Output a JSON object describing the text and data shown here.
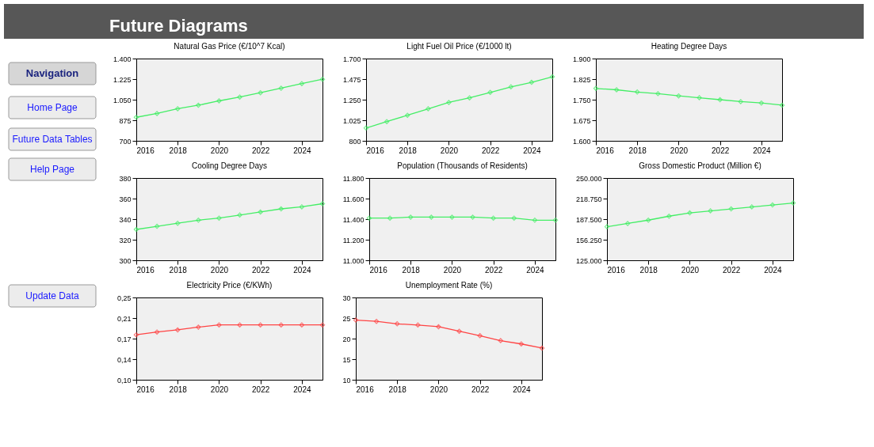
{
  "chart_data": [
    {
      "type": "other",
      "title": "Future Diagrams",
      "annotations": [
        "Navigation",
        "Home Page",
        "Future Data Tables",
        "Help Page",
        "Update Data"
      ]
    },
    {
      "type": "line",
      "title": "Natural Gas Price (€/10^7 Kcal)",
      "x": [
        2016,
        2017,
        2018,
        2019,
        2020,
        2021,
        2022,
        2023,
        2024,
        2025
      ],
      "xlim": [
        2016,
        2025
      ],
      "xticks": [
        2016,
        2018,
        2020,
        2022,
        2024
      ],
      "ylim": [
        700,
        1400
      ],
      "yticks": [
        {
          "value": 700,
          "label": "700"
        },
        {
          "value": 875,
          "label": "875"
        },
        {
          "value": 1050,
          "label": "1.050"
        },
        {
          "value": 1225,
          "label": "1.225"
        },
        {
          "value": 1400,
          "label": "1.400"
        }
      ],
      "grid": false,
      "marker": "diamond",
      "line_style": "solid",
      "series": [
        {
          "color": "#44ee66",
          "values": [
            900,
            933,
            973,
            1003,
            1040,
            1072,
            1109,
            1148,
            1187,
            1224
          ]
        }
      ]
    },
    {
      "type": "line",
      "title": "Light Fuel Oil Price (€/1000 lt)",
      "x": [
        2016,
        2017,
        2018,
        2019,
        2020,
        2021,
        2022,
        2023,
        2024,
        2025
      ],
      "xlim": [
        2016,
        2025
      ],
      "xticks": [
        2016,
        2018,
        2020,
        2022,
        2024
      ],
      "ylim": [
        800,
        1700
      ],
      "yticks": [
        {
          "value": 800,
          "label": "800"
        },
        {
          "value": 1025,
          "label": "1.025"
        },
        {
          "value": 1250,
          "label": "1.250"
        },
        {
          "value": 1475,
          "label": "1.475"
        },
        {
          "value": 1700,
          "label": "1.700"
        }
      ],
      "grid": false,
      "marker": "diamond",
      "line_style": "solid",
      "series": [
        {
          "color": "#44ee66",
          "values": [
            940,
            1010,
            1080,
            1150,
            1220,
            1270,
            1330,
            1390,
            1440,
            1500
          ]
        }
      ]
    },
    {
      "type": "line",
      "title": "Heating Degree Days",
      "x": [
        2016,
        2017,
        2018,
        2019,
        2020,
        2021,
        2022,
        2023,
        2024,
        2025
      ],
      "xlim": [
        2016,
        2025
      ],
      "xticks": [
        2016,
        2018,
        2020,
        2022,
        2024
      ],
      "ylim": [
        1600,
        1900
      ],
      "yticks": [
        {
          "value": 1600,
          "label": "1.600"
        },
        {
          "value": 1675,
          "label": "1.675"
        },
        {
          "value": 1750,
          "label": "1.750"
        },
        {
          "value": 1825,
          "label": "1.825"
        },
        {
          "value": 1900,
          "label": "1.900"
        }
      ],
      "grid": false,
      "marker": "diamond",
      "line_style": "solid",
      "series": [
        {
          "color": "#44ee66",
          "values": [
            1791,
            1786,
            1778,
            1772,
            1764,
            1757,
            1750,
            1743,
            1738,
            1730
          ]
        }
      ]
    },
    {
      "type": "line",
      "title": "Cooling Degree Days",
      "x": [
        2016,
        2017,
        2018,
        2019,
        2020,
        2021,
        2022,
        2023,
        2024,
        2025
      ],
      "xlim": [
        2016,
        2025
      ],
      "xticks": [
        2016,
        2018,
        2020,
        2022,
        2024
      ],
      "ylim": [
        300,
        380
      ],
      "yticks": [
        300,
        320,
        340,
        360,
        380
      ],
      "grid": false,
      "marker": "diamond",
      "line_style": "solid",
      "series": [
        {
          "color": "#44ee66",
          "values": [
            330,
            333,
            336,
            339,
            341,
            344,
            347,
            350,
            352,
            355
          ]
        }
      ]
    },
    {
      "type": "line",
      "title": "Population (Thousands of Residents)",
      "x": [
        2016,
        2017,
        2018,
        2019,
        2020,
        2021,
        2022,
        2023,
        2024,
        2025
      ],
      "xlim": [
        2016,
        2025
      ],
      "xticks": [
        2016,
        2018,
        2020,
        2022,
        2024
      ],
      "ylim": [
        11000,
        11800
      ],
      "yticks": [
        {
          "value": 11000,
          "label": "11.000"
        },
        {
          "value": 11200,
          "label": "11.200"
        },
        {
          "value": 11400,
          "label": "11.400"
        },
        {
          "value": 11600,
          "label": "11.600"
        },
        {
          "value": 11800,
          "label": "11.800"
        }
      ],
      "grid": false,
      "marker": "diamond",
      "line_style": "solid",
      "series": [
        {
          "color": "#44ee66",
          "values": [
            11410,
            11410,
            11420,
            11420,
            11420,
            11420,
            11410,
            11410,
            11390,
            11390
          ]
        }
      ]
    },
    {
      "type": "line",
      "title": "Gross Domestic Product (Million €)",
      "x": [
        2016,
        2017,
        2018,
        2019,
        2020,
        2021,
        2022,
        2023,
        2024,
        2025
      ],
      "xlim": [
        2016,
        2025
      ],
      "xticks": [
        2016,
        2018,
        2020,
        2022,
        2024
      ],
      "ylim": [
        125000,
        250000
      ],
      "yticks": [
        {
          "value": 125000,
          "label": "125.000"
        },
        {
          "value": 156250,
          "label": "156.250"
        },
        {
          "value": 187500,
          "label": "187.500"
        },
        {
          "value": 218750,
          "label": "218.750"
        },
        {
          "value": 250000,
          "label": "250.000"
        }
      ],
      "grid": false,
      "marker": "diamond",
      "line_style": "solid",
      "series": [
        {
          "color": "#44ee66",
          "values": [
            176000,
            181000,
            186000,
            192000,
            197000,
            200000,
            203000,
            206000,
            209000,
            212000
          ]
        }
      ]
    },
    {
      "type": "line",
      "title": "Electricity Price (€/KWh)",
      "x": [
        2016,
        2017,
        2018,
        2019,
        2020,
        2021,
        2022,
        2023,
        2024,
        2025
      ],
      "xlim": [
        2016,
        2025
      ],
      "xticks": [
        2016,
        2018,
        2020,
        2022,
        2024
      ],
      "ylim": [
        0.1,
        0.25
      ],
      "yticks": [
        {
          "value": 0.1,
          "label": "0,10"
        },
        {
          "value": 0.1375,
          "label": "0,14"
        },
        {
          "value": 0.175,
          "label": "0,17"
        },
        {
          "value": 0.2125,
          "label": "0,21"
        },
        {
          "value": 0.25,
          "label": "0,25"
        }
      ],
      "grid": false,
      "marker": "diamond",
      "line_style": "solid",
      "series": [
        {
          "color": "#ff4444",
          "values": [
            0.182,
            0.187,
            0.191,
            0.196,
            0.2,
            0.2,
            0.2,
            0.2,
            0.2,
            0.2
          ]
        }
      ]
    },
    {
      "type": "line",
      "title": "Unemployment Rate (%)",
      "x": [
        2016,
        2017,
        2018,
        2019,
        2020,
        2021,
        2022,
        2023,
        2024,
        2025
      ],
      "xlim": [
        2016,
        2025
      ],
      "xticks": [
        2016,
        2018,
        2020,
        2022,
        2024
      ],
      "ylim": [
        10,
        30
      ],
      "yticks": [
        10,
        15,
        20,
        25,
        30
      ],
      "grid": false,
      "marker": "diamond",
      "line_style": "solid",
      "series": [
        {
          "color": "#ff4444",
          "values": [
            24.5,
            24.2,
            23.6,
            23.3,
            22.9,
            21.8,
            20.7,
            19.5,
            18.7,
            17.7
          ]
        }
      ]
    }
  ]
}
